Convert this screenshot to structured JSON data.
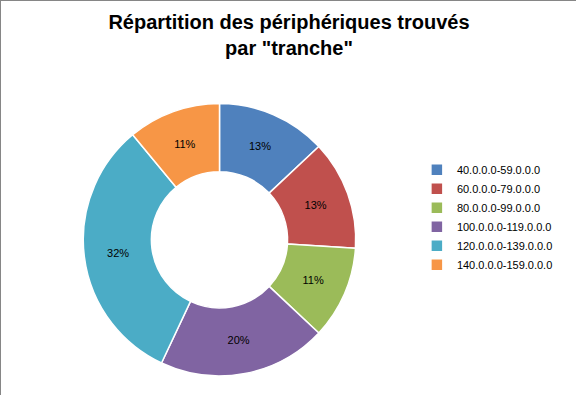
{
  "chart_data": {
    "type": "pie",
    "title": [
      "Répartition des périphériques trouvés",
      "par \"tranche\""
    ],
    "categories": [
      "40.0.0.0-59.0.0.0",
      "60.0.0.0-79.0.0.0",
      "80.0.0.0-99.0.0.0",
      "100.0.0.0-119.0.0.0",
      "120.0.0.0-139.0.0.0",
      "140.0.0.0-159.0.0.0"
    ],
    "values": [
      13,
      13,
      11,
      20,
      32,
      11
    ],
    "value_labels": [
      "13%",
      "13%",
      "11%",
      "20%",
      "32%",
      "11%"
    ],
    "colors": [
      "#4f81bd",
      "#c0504d",
      "#9bbb59",
      "#8064a2",
      "#4bacc6",
      "#f79646"
    ],
    "data_labels": true,
    "legend": "right"
  }
}
